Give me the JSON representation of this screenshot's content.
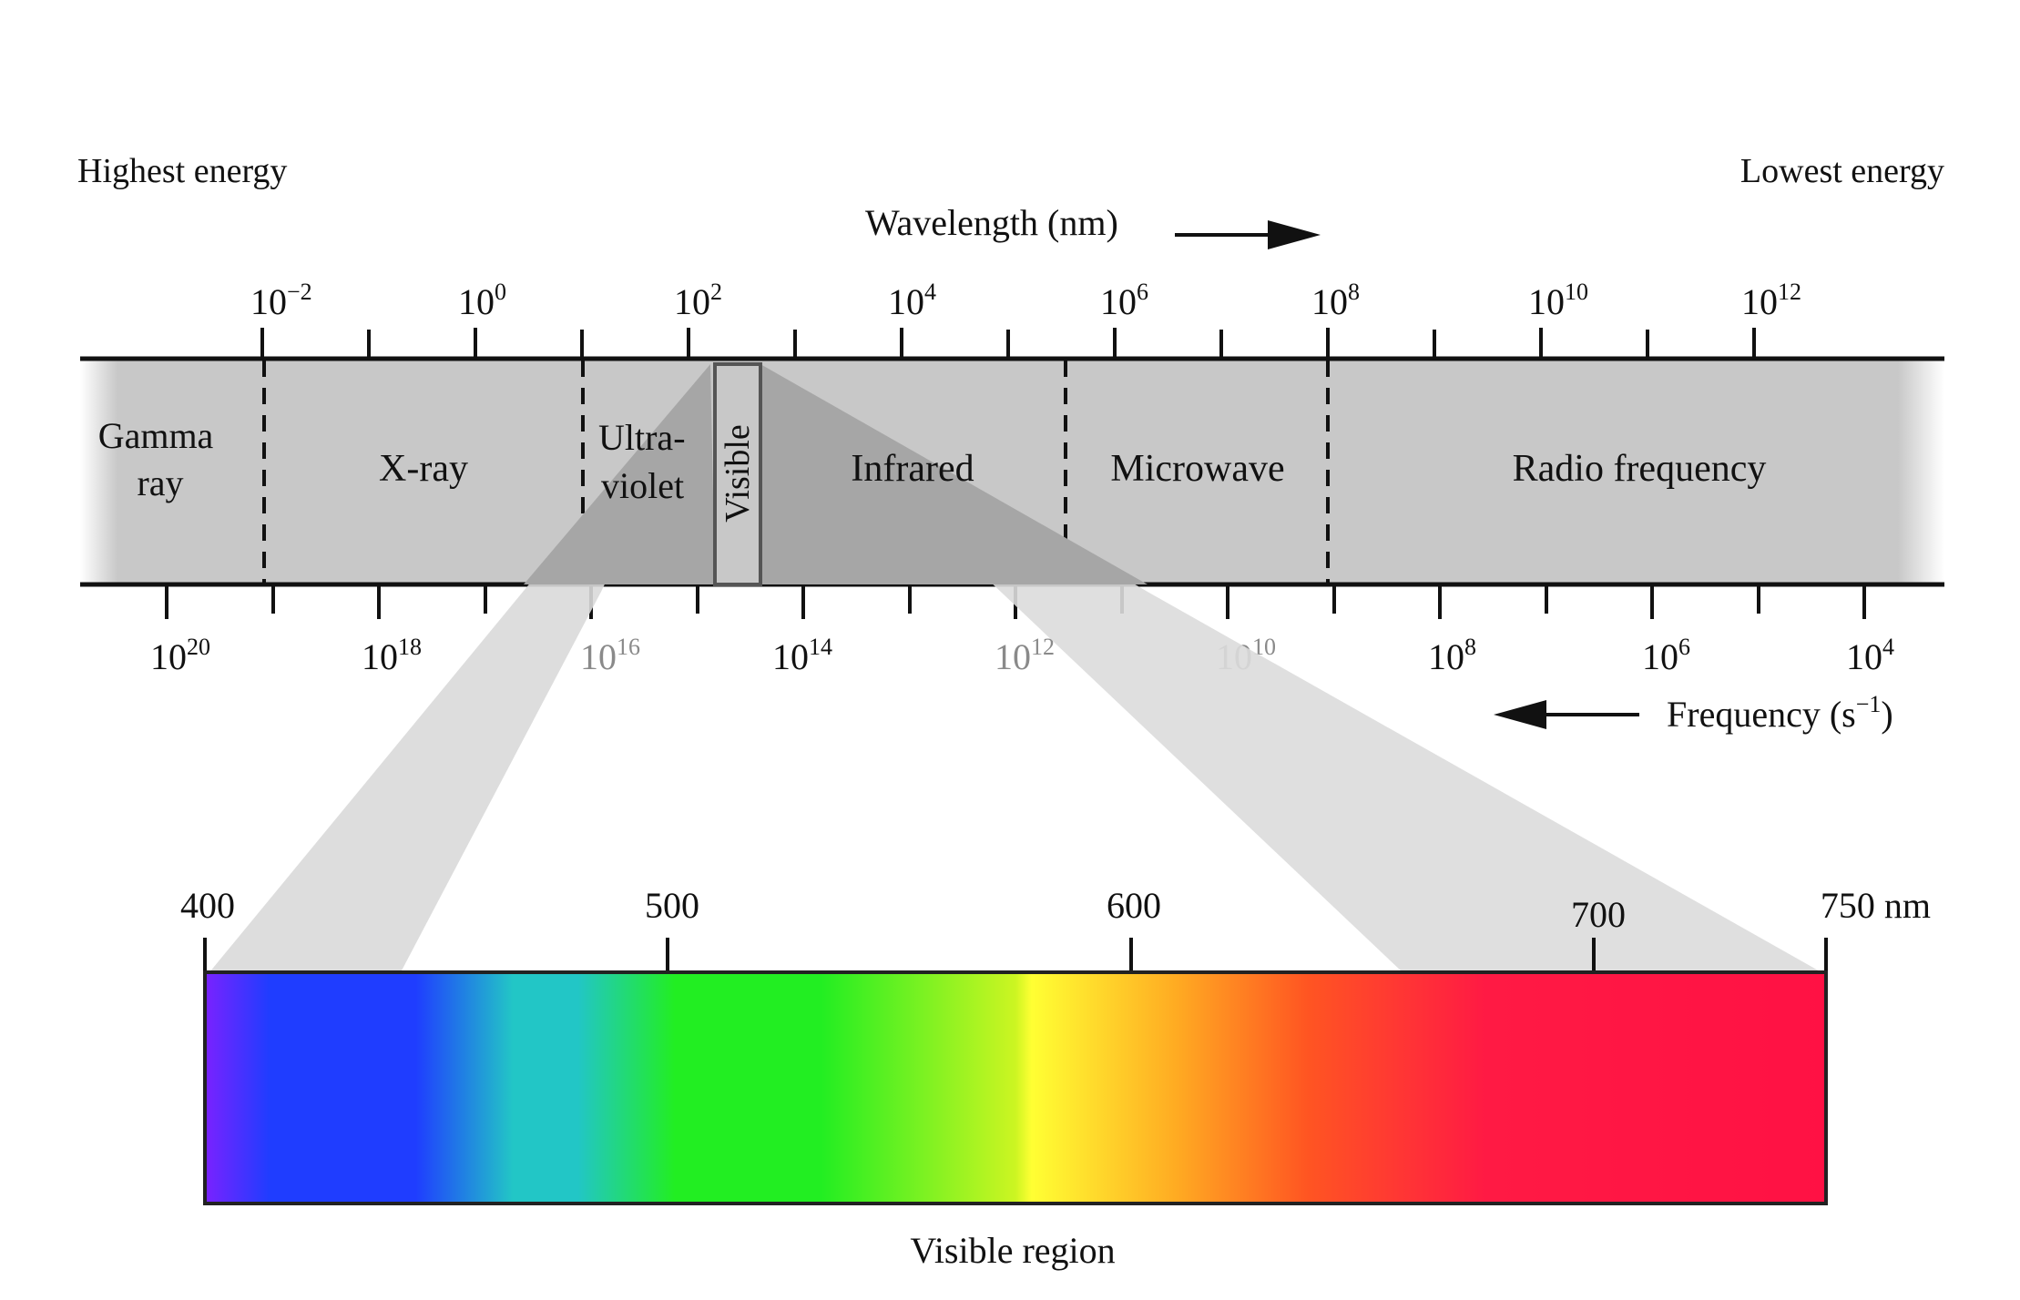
{
  "header": {
    "highest_energy": "Highest energy",
    "lowest_energy": "Lowest energy",
    "wavelength_label": "Wavelength (nm)",
    "frequency_label": "Frequency (s",
    "frequency_exp": "−1",
    "frequency_close": ")"
  },
  "wavelength_ticks": [
    {
      "base": "10",
      "exp": "−2"
    },
    {
      "base": "10",
      "exp": "0"
    },
    {
      "base": "10",
      "exp": "2"
    },
    {
      "base": "10",
      "exp": "4"
    },
    {
      "base": "10",
      "exp": "6"
    },
    {
      "base": "10",
      "exp": "8"
    },
    {
      "base": "10",
      "exp": "10"
    },
    {
      "base": "10",
      "exp": "12"
    }
  ],
  "frequency_ticks": [
    {
      "base": "10",
      "exp": "20"
    },
    {
      "base": "10",
      "exp": "18"
    },
    {
      "base": "10",
      "exp": "16"
    },
    {
      "base": "10",
      "exp": "14"
    },
    {
      "base": "10",
      "exp": "12"
    },
    {
      "base": "10",
      "exp": "10"
    },
    {
      "base": "10",
      "exp": "8"
    },
    {
      "base": "10",
      "exp": "6"
    },
    {
      "base": "10",
      "exp": "4"
    }
  ],
  "regions": {
    "gamma_line1": "Gamma",
    "gamma_line2": "ray",
    "xray": "X-ray",
    "uv_line1": "Ultra-",
    "uv_line2": "violet",
    "visible": "Visible",
    "infrared": "Infrared",
    "microwave": "Microwave",
    "radio": "Radio frequency"
  },
  "visible_scale": {
    "ticks": [
      "400",
      "500",
      "600",
      "700",
      "750 nm"
    ],
    "title": "Visible region"
  },
  "colors": {
    "band": "#c8c8c8",
    "projection": "#dedede",
    "projection_dark": "#a9a9a9",
    "spectrum": [
      "#7a22ff",
      "#1f3dff",
      "#1f3dff",
      "#22c6c6",
      "#22ee22",
      "#88f022",
      "#ffff33",
      "#ff9922",
      "#ff4422",
      "#ff1144",
      "#ff1144"
    ]
  }
}
